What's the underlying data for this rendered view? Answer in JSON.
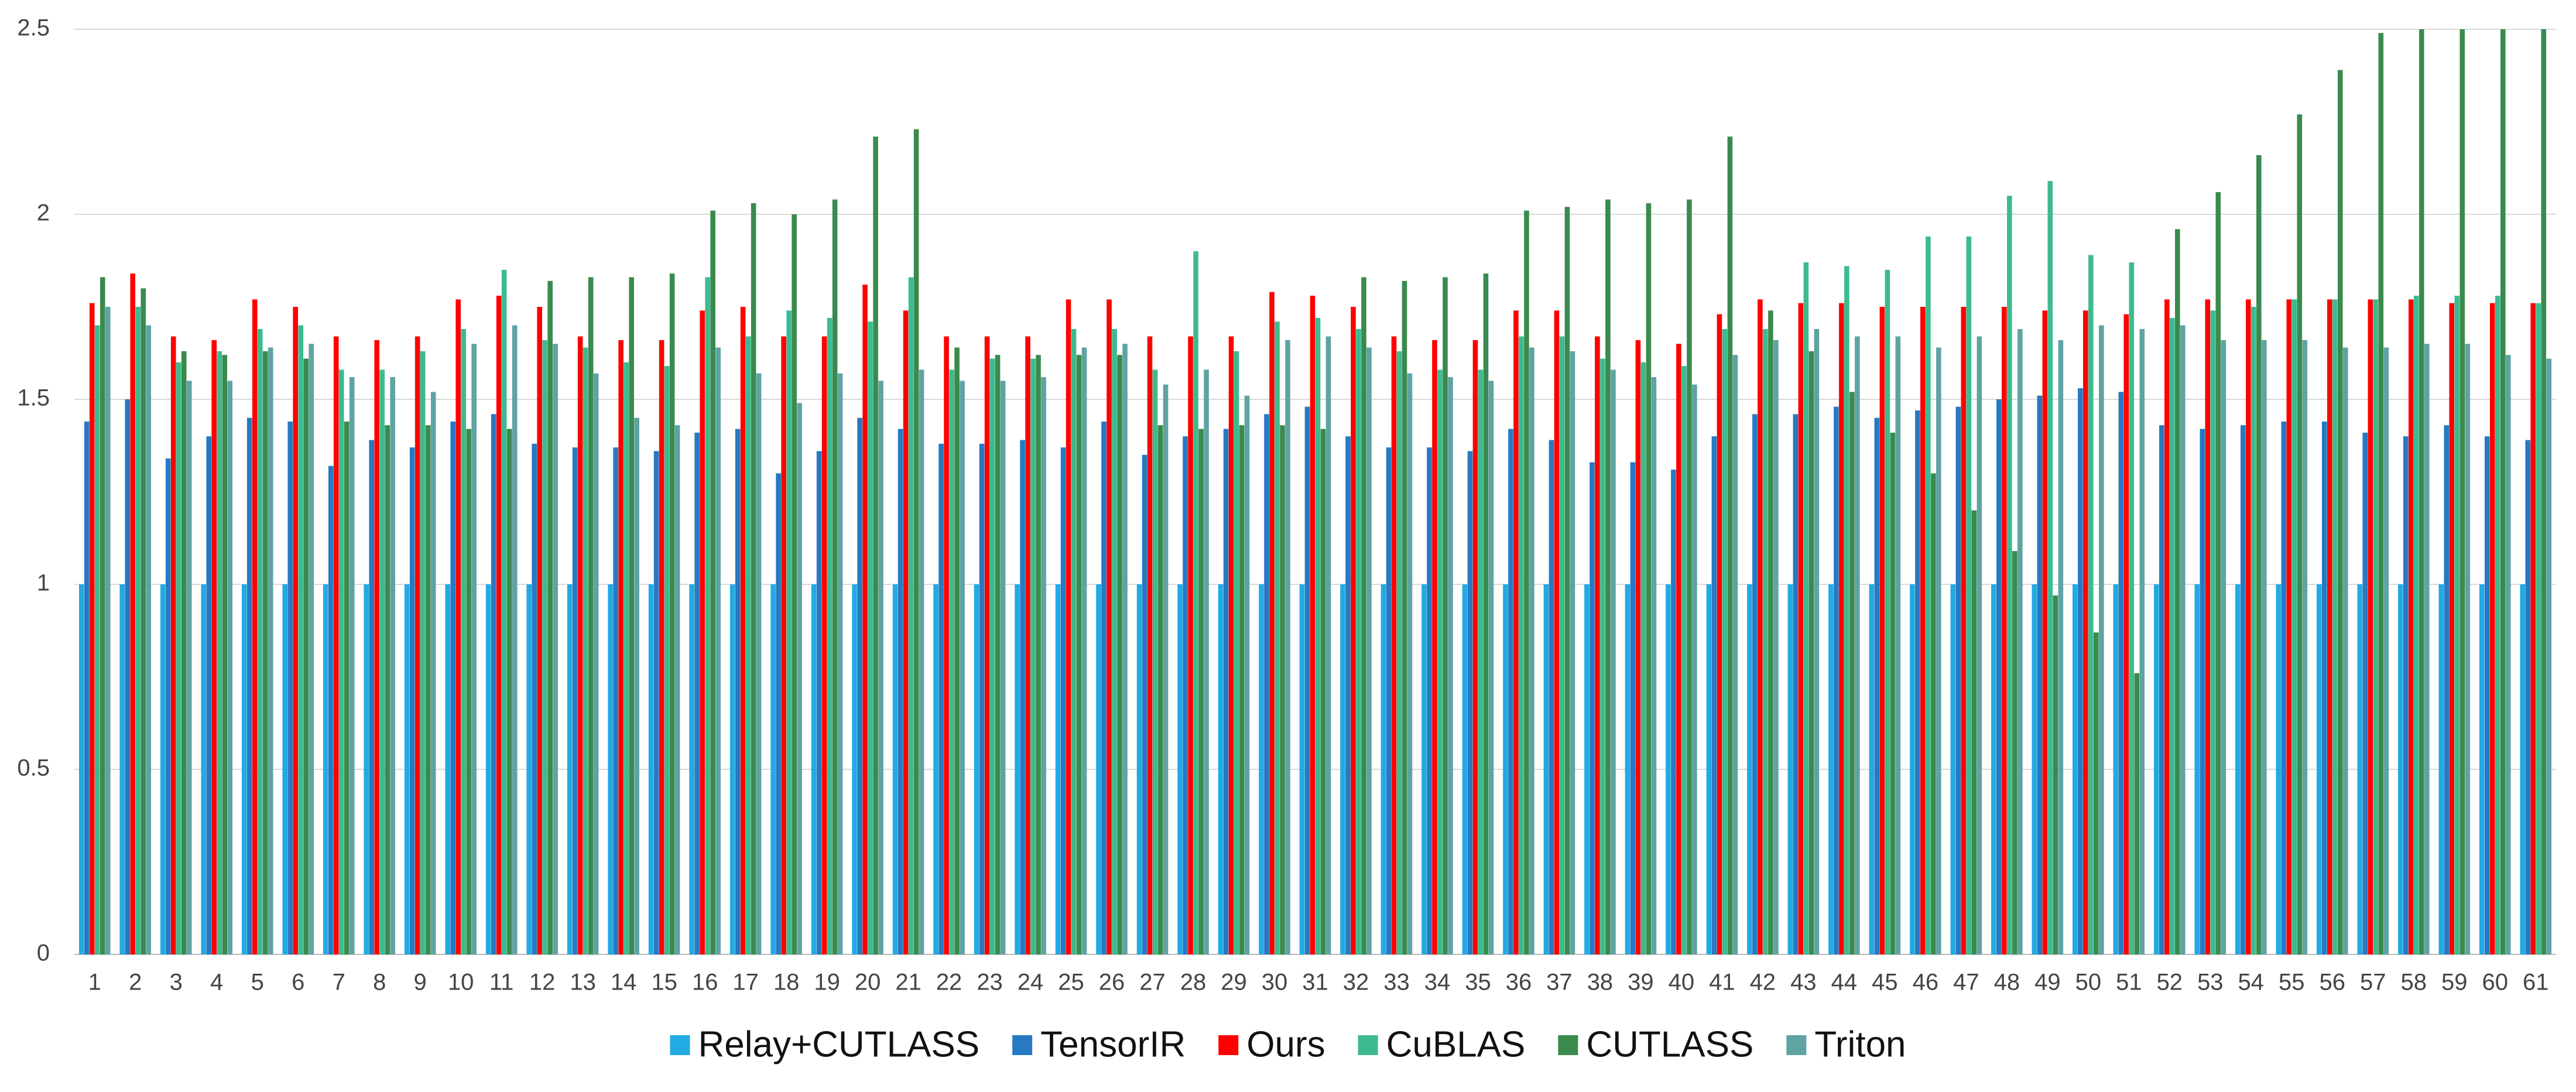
{
  "chart_data": {
    "type": "bar",
    "categories": [
      "1",
      "2",
      "3",
      "4",
      "5",
      "6",
      "7",
      "8",
      "9",
      "10",
      "11",
      "12",
      "13",
      "14",
      "15",
      "16",
      "17",
      "18",
      "19",
      "20",
      "21",
      "22",
      "23",
      "24",
      "25",
      "26",
      "27",
      "28",
      "29",
      "30",
      "31",
      "32",
      "33",
      "34",
      "35",
      "36",
      "37",
      "38",
      "39",
      "40",
      "41",
      "42",
      "43",
      "44",
      "45",
      "46",
      "47",
      "48",
      "49",
      "50",
      "51",
      "52",
      "53",
      "54",
      "55",
      "56",
      "57",
      "58",
      "59",
      "60",
      "61"
    ],
    "series": [
      {
        "name": "Relay+CUTLASS",
        "color": "#22aae2",
        "values": [
          1,
          1,
          1,
          1,
          1,
          1,
          1,
          1,
          1,
          1,
          1,
          1,
          1,
          1,
          1,
          1,
          1,
          1,
          1,
          1,
          1,
          1,
          1,
          1,
          1,
          1,
          1,
          1,
          1,
          1,
          1,
          1,
          1,
          1,
          1,
          1,
          1,
          1,
          1,
          1,
          1,
          1,
          1,
          1,
          1,
          1,
          1,
          1,
          1,
          1,
          1,
          1,
          1,
          1,
          1,
          1,
          1,
          1,
          1,
          1,
          1
        ]
      },
      {
        "name": "TensorIR",
        "color": "#2679c2",
        "values": [
          1.44,
          1.5,
          1.34,
          1.4,
          1.45,
          1.44,
          1.32,
          1.39,
          1.37,
          1.44,
          1.46,
          1.38,
          1.37,
          1.37,
          1.36,
          1.41,
          1.42,
          1.3,
          1.36,
          1.45,
          1.42,
          1.38,
          1.38,
          1.39,
          1.37,
          1.44,
          1.35,
          1.4,
          1.42,
          1.46,
          1.48,
          1.4,
          1.37,
          1.37,
          1.36,
          1.42,
          1.39,
          1.33,
          1.33,
          1.31,
          1.4,
          1.46,
          1.46,
          1.48,
          1.45,
          1.47,
          1.48,
          1.5,
          1.51,
          1.53,
          1.52,
          1.43,
          1.42,
          1.43,
          1.44,
          1.44,
          1.41,
          1.4,
          1.43,
          1.4,
          1.39
        ]
      },
      {
        "name": "Ours",
        "color": "#ff0000",
        "values": [
          1.76,
          1.84,
          1.67,
          1.66,
          1.77,
          1.75,
          1.67,
          1.66,
          1.67,
          1.77,
          1.78,
          1.75,
          1.67,
          1.66,
          1.66,
          1.74,
          1.75,
          1.67,
          1.67,
          1.81,
          1.74,
          1.67,
          1.67,
          1.67,
          1.77,
          1.77,
          1.67,
          1.67,
          1.67,
          1.79,
          1.78,
          1.75,
          1.67,
          1.66,
          1.66,
          1.74,
          1.74,
          1.67,
          1.66,
          1.65,
          1.73,
          1.77,
          1.76,
          1.76,
          1.75,
          1.75,
          1.75,
          1.75,
          1.74,
          1.74,
          1.73,
          1.77,
          1.77,
          1.77,
          1.77,
          1.77,
          1.77,
          1.77,
          1.76,
          1.76,
          1.76
        ]
      },
      {
        "name": "CuBLAS",
        "color": "#3dbb8f",
        "values": [
          1.7,
          1.75,
          1.6,
          1.63,
          1.69,
          1.7,
          1.58,
          1.58,
          1.63,
          1.69,
          1.85,
          1.66,
          1.64,
          1.6,
          1.59,
          1.83,
          1.67,
          1.74,
          1.72,
          1.71,
          1.83,
          1.58,
          1.61,
          1.61,
          1.69,
          1.69,
          1.58,
          1.9,
          1.63,
          1.71,
          1.72,
          1.69,
          1.63,
          1.58,
          1.58,
          1.67,
          1.67,
          1.61,
          1.6,
          1.59,
          1.69,
          1.69,
          1.87,
          1.86,
          1.85,
          1.94,
          1.94,
          2.05,
          2.09,
          1.89,
          1.87,
          1.72,
          1.74,
          1.75,
          1.77,
          1.77,
          1.77,
          1.78,
          1.78,
          1.78,
          1.76
        ]
      },
      {
        "name": "CUTLASS",
        "color": "#3a8a4e",
        "values": [
          1.83,
          1.8,
          1.63,
          1.62,
          1.63,
          1.61,
          1.44,
          1.43,
          1.43,
          1.42,
          1.42,
          1.82,
          1.83,
          1.83,
          1.84,
          2.01,
          2.03,
          2.0,
          2.04,
          2.21,
          2.23,
          1.64,
          1.62,
          1.62,
          1.62,
          1.62,
          1.43,
          1.42,
          1.43,
          1.43,
          1.42,
          1.83,
          1.82,
          1.83,
          1.84,
          2.01,
          2.02,
          2.04,
          2.03,
          2.04,
          2.21,
          1.74,
          1.63,
          1.52,
          1.41,
          1.3,
          1.2,
          1.09,
          0.97,
          0.87,
          0.76,
          1.96,
          2.06,
          2.16,
          2.27,
          2.39,
          2.49,
          2.5,
          2.5,
          2.5,
          2.5
        ]
      },
      {
        "name": "Triton",
        "color": "#5fa3a3",
        "values": [
          1.75,
          1.7,
          1.55,
          1.55,
          1.64,
          1.65,
          1.56,
          1.56,
          1.52,
          1.65,
          1.7,
          1.65,
          1.57,
          1.45,
          1.43,
          1.64,
          1.57,
          1.49,
          1.57,
          1.55,
          1.58,
          1.55,
          1.55,
          1.56,
          1.64,
          1.65,
          1.54,
          1.58,
          1.51,
          1.66,
          1.67,
          1.64,
          1.57,
          1.56,
          1.55,
          1.64,
          1.63,
          1.58,
          1.56,
          1.54,
          1.62,
          1.66,
          1.69,
          1.67,
          1.67,
          1.64,
          1.67,
          1.69,
          1.66,
          1.7,
          1.69,
          1.7,
          1.66,
          1.66,
          1.66,
          1.64,
          1.64,
          1.65,
          1.65,
          1.62,
          1.61
        ]
      }
    ],
    "ylim": [
      0,
      2.5
    ],
    "yticks": [
      0,
      0.5,
      1,
      1.5,
      2,
      2.5
    ],
    "grid": true
  }
}
